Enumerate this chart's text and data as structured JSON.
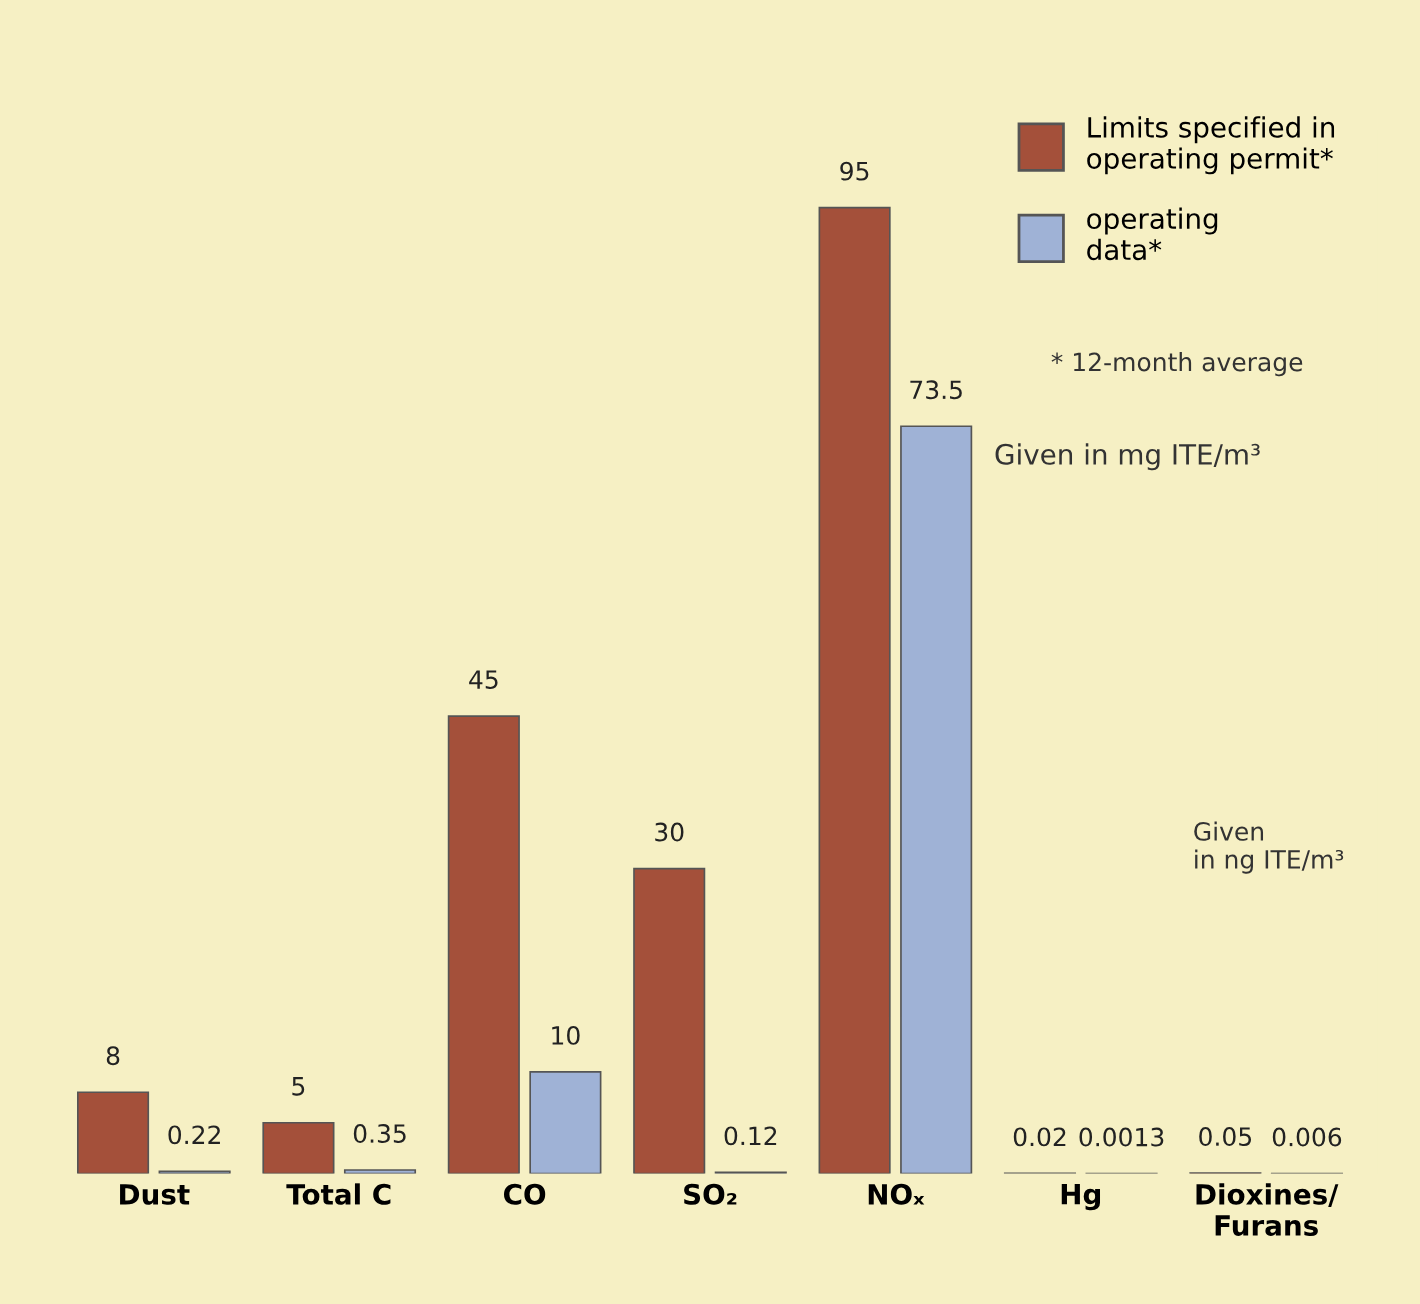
{
  "chart_data": {
    "type": "bar",
    "categories": [
      "Dust",
      "Total C",
      "CO",
      "SO₂",
      "NOₓ",
      "Hg",
      "Dioxines/\nFurans"
    ],
    "series": [
      {
        "name": "Limits specified in\noperating permit*",
        "color": "#a4503a",
        "values": [
          8,
          5,
          45,
          30,
          95,
          0.02,
          0.05
        ]
      },
      {
        "name": "operating\ndata*",
        "color": "#9fb2d6",
        "values": [
          0.22,
          0.35,
          10,
          0.12,
          73.5,
          0.0013,
          0.006
        ]
      }
    ],
    "data_labels": true,
    "legend": "top right",
    "grid": false,
    "annotations": [
      "* 12-month average",
      "Given in mg ITE/m³",
      "Given\nin ng ITE/m³"
    ]
  }
}
